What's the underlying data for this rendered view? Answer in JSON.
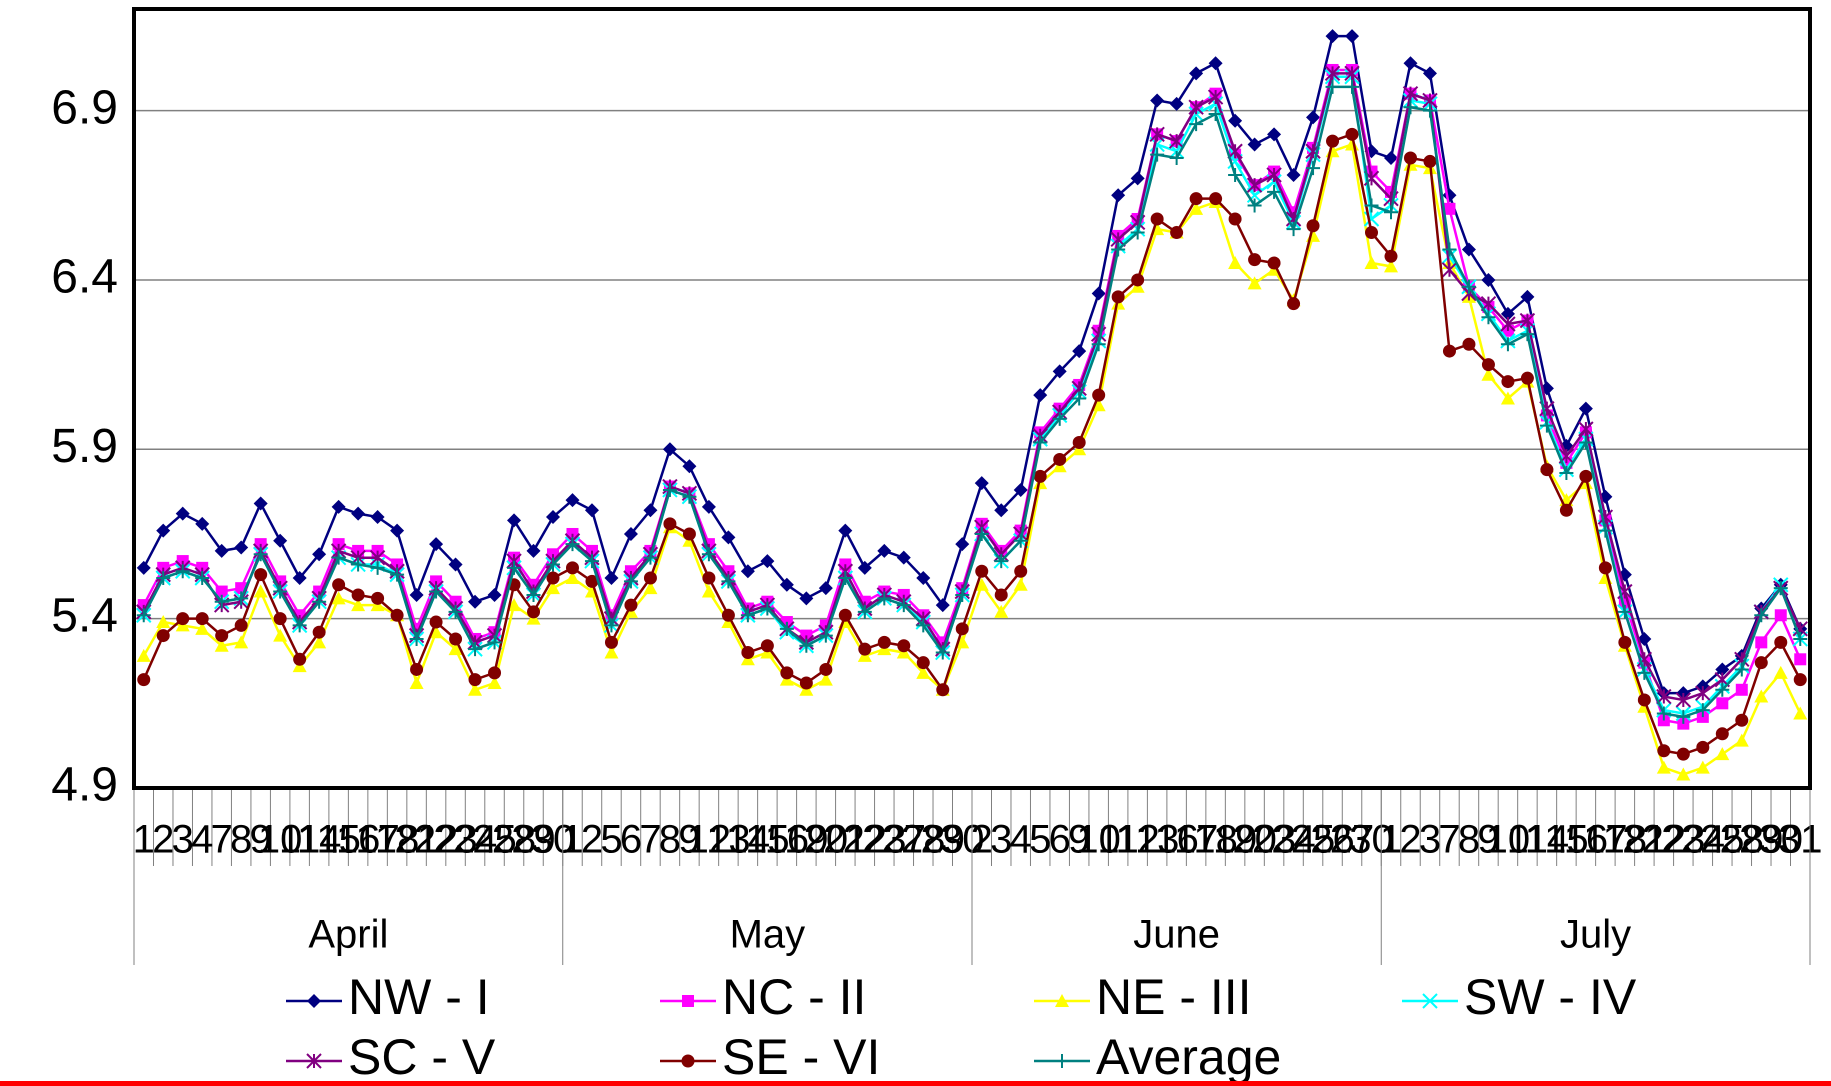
{
  "chart_data": {
    "type": "line",
    "months": [
      {
        "name": "April",
        "days": [
          1,
          2,
          3,
          4,
          7,
          8,
          9,
          10,
          11,
          14,
          15,
          16,
          17,
          18,
          21,
          22,
          23,
          24,
          25,
          28,
          29,
          30
        ]
      },
      {
        "name": "May",
        "days": [
          1,
          2,
          5,
          6,
          7,
          8,
          9,
          12,
          13,
          14,
          15,
          16,
          19,
          20,
          21,
          22,
          23,
          27,
          28,
          29,
          30
        ]
      },
      {
        "name": "June",
        "days": [
          2,
          3,
          4,
          5,
          6,
          9,
          10,
          11,
          12,
          13,
          16,
          17,
          18,
          19,
          20,
          23,
          24,
          25,
          26,
          27,
          30
        ]
      },
      {
        "name": "July",
        "days": [
          1,
          2,
          3,
          7,
          8,
          9,
          10,
          11,
          14,
          15,
          16,
          17,
          18,
          21,
          22,
          23,
          24,
          25,
          28,
          29,
          30,
          31
        ]
      }
    ],
    "ylim": [
      4.9,
      7.2
    ],
    "yticks": [
      4.9,
      5.4,
      5.9,
      6.4,
      6.9
    ],
    "grid": true,
    "legend": "bottom",
    "series": [
      {
        "name": "NW - I",
        "color": "#000080",
        "marker": "diamond",
        "values": [
          5.55,
          5.66,
          5.71,
          5.68,
          5.6,
          5.61,
          5.74,
          5.63,
          5.52,
          5.59,
          5.73,
          5.71,
          5.7,
          5.66,
          5.47,
          5.62,
          5.56,
          5.45,
          5.47,
          5.69,
          5.6,
          5.7,
          5.75,
          5.72,
          5.52,
          5.65,
          5.72,
          5.9,
          5.85,
          5.73,
          5.64,
          5.54,
          5.57,
          5.5,
          5.46,
          5.49,
          5.66,
          5.55,
          5.6,
          5.58,
          5.52,
          5.44,
          5.62,
          5.8,
          5.72,
          5.78,
          6.06,
          6.13,
          6.19,
          6.36,
          6.65,
          6.7,
          6.93,
          6.92,
          7.01,
          7.04,
          6.87,
          6.8,
          6.83,
          6.71,
          6.88,
          7.12,
          7.12,
          6.78,
          6.76,
          7.04,
          7.01,
          6.65,
          6.49,
          6.4,
          6.3,
          6.35,
          6.08,
          5.91,
          6.02,
          5.76,
          5.53,
          5.34,
          5.18,
          5.18,
          5.2,
          5.25,
          5.29,
          5.43,
          5.5,
          5.37
        ]
      },
      {
        "name": "NC - II",
        "color": "#ff00ff",
        "marker": "square",
        "values": [
          5.44,
          5.55,
          5.57,
          5.55,
          5.48,
          5.49,
          5.62,
          5.51,
          5.41,
          5.48,
          5.62,
          5.6,
          5.6,
          5.56,
          5.37,
          5.51,
          5.45,
          5.34,
          5.36,
          5.58,
          5.5,
          5.59,
          5.65,
          5.6,
          5.41,
          5.54,
          5.6,
          5.79,
          5.77,
          5.62,
          5.54,
          5.43,
          5.45,
          5.39,
          5.35,
          5.38,
          5.56,
          5.45,
          5.48,
          5.47,
          5.41,
          5.33,
          5.49,
          5.68,
          5.6,
          5.66,
          5.95,
          6.02,
          6.09,
          6.25,
          6.53,
          6.58,
          6.83,
          6.81,
          6.91,
          6.95,
          6.77,
          6.68,
          6.72,
          6.6,
          6.79,
          7.02,
          7.02,
          6.72,
          6.66,
          6.95,
          6.93,
          6.61,
          6.38,
          6.32,
          6.25,
          6.28,
          6.0,
          5.86,
          5.95,
          5.69,
          5.45,
          5.27,
          5.1,
          5.09,
          5.11,
          5.15,
          5.19,
          5.33,
          5.41,
          5.28
        ]
      },
      {
        "name": "NE - III",
        "color": "#ffff00",
        "marker": "triangle",
        "values": [
          5.29,
          5.39,
          5.38,
          5.37,
          5.32,
          5.33,
          5.48,
          5.35,
          5.26,
          5.33,
          5.46,
          5.44,
          5.44,
          5.41,
          5.21,
          5.36,
          5.31,
          5.19,
          5.21,
          5.44,
          5.4,
          5.49,
          5.52,
          5.48,
          5.3,
          5.42,
          5.49,
          5.67,
          5.63,
          5.48,
          5.39,
          5.28,
          5.3,
          5.22,
          5.19,
          5.22,
          5.39,
          5.29,
          5.31,
          5.3,
          5.24,
          5.19,
          5.33,
          5.5,
          5.42,
          5.5,
          5.8,
          5.85,
          5.9,
          6.03,
          6.33,
          6.38,
          6.55,
          6.54,
          6.61,
          6.63,
          6.45,
          6.39,
          6.43,
          6.34,
          6.53,
          6.78,
          6.8,
          6.45,
          6.44,
          6.74,
          6.73,
          6.45,
          6.35,
          6.12,
          6.05,
          6.1,
          5.85,
          5.75,
          5.8,
          5.52,
          5.32,
          5.14,
          4.96,
          4.94,
          4.96,
          5.0,
          5.04,
          5.17,
          5.24,
          5.12
        ]
      },
      {
        "name": "SW - IV",
        "color": "#00ffff",
        "marker": "x",
        "values": [
          5.41,
          5.52,
          5.54,
          5.52,
          5.45,
          5.46,
          5.59,
          5.48,
          5.38,
          5.45,
          5.58,
          5.56,
          5.56,
          5.53,
          5.34,
          5.48,
          5.42,
          5.31,
          5.33,
          5.55,
          5.47,
          5.56,
          5.62,
          5.57,
          5.38,
          5.51,
          5.58,
          5.78,
          5.76,
          5.59,
          5.51,
          5.41,
          5.43,
          5.36,
          5.32,
          5.35,
          5.52,
          5.42,
          5.46,
          5.44,
          5.39,
          5.3,
          5.47,
          5.65,
          5.57,
          5.63,
          5.93,
          6.0,
          6.07,
          6.22,
          6.5,
          6.55,
          6.8,
          6.78,
          6.89,
          6.92,
          6.75,
          6.65,
          6.69,
          6.57,
          6.77,
          7.0,
          7.0,
          6.58,
          6.62,
          6.93,
          6.92,
          6.47,
          6.38,
          6.3,
          6.22,
          6.25,
          5.98,
          5.84,
          5.93,
          5.67,
          5.42,
          5.25,
          5.13,
          5.12,
          5.14,
          5.2,
          5.26,
          5.42,
          5.5,
          5.34
        ]
      },
      {
        "name": "SC - V",
        "color": "#800080",
        "marker": "star",
        "values": [
          5.42,
          5.53,
          5.55,
          5.53,
          5.44,
          5.45,
          5.6,
          5.49,
          5.39,
          5.46,
          5.6,
          5.58,
          5.58,
          5.54,
          5.35,
          5.49,
          5.43,
          5.33,
          5.35,
          5.57,
          5.48,
          5.57,
          5.63,
          5.58,
          5.4,
          5.52,
          5.59,
          5.79,
          5.77,
          5.6,
          5.52,
          5.42,
          5.44,
          5.37,
          5.33,
          5.36,
          5.54,
          5.43,
          5.47,
          5.45,
          5.4,
          5.31,
          5.48,
          5.67,
          5.59,
          5.65,
          5.94,
          6.01,
          6.08,
          6.24,
          6.52,
          6.57,
          6.83,
          6.81,
          6.91,
          6.94,
          6.78,
          6.68,
          6.71,
          6.58,
          6.78,
          7.01,
          7.01,
          6.7,
          6.64,
          6.95,
          6.93,
          6.43,
          6.36,
          6.33,
          6.27,
          6.28,
          6.02,
          5.88,
          5.96,
          5.7,
          5.48,
          5.28,
          5.17,
          5.16,
          5.18,
          5.22,
          5.28,
          5.42,
          5.49,
          5.37
        ]
      },
      {
        "name": "SE - VI",
        "color": "#800000",
        "marker": "circle",
        "values": [
          5.22,
          5.35,
          5.4,
          5.4,
          5.35,
          5.38,
          5.53,
          5.4,
          5.28,
          5.36,
          5.5,
          5.47,
          5.46,
          5.41,
          5.25,
          5.39,
          5.34,
          5.22,
          5.24,
          5.5,
          5.42,
          5.52,
          5.55,
          5.51,
          5.33,
          5.44,
          5.52,
          5.68,
          5.65,
          5.52,
          5.41,
          5.3,
          5.32,
          5.24,
          5.21,
          5.25,
          5.41,
          5.31,
          5.33,
          5.32,
          5.27,
          5.19,
          5.37,
          5.54,
          5.47,
          5.54,
          5.82,
          5.87,
          5.92,
          6.06,
          6.35,
          6.4,
          6.58,
          6.54,
          6.64,
          6.64,
          6.58,
          6.46,
          6.45,
          6.33,
          6.56,
          6.81,
          6.83,
          6.54,
          6.47,
          6.76,
          6.75,
          6.19,
          6.21,
          6.15,
          6.1,
          6.11,
          5.84,
          5.72,
          5.82,
          5.55,
          5.33,
          5.16,
          5.01,
          5.0,
          5.02,
          5.06,
          5.1,
          5.27,
          5.33,
          5.22
        ]
      },
      {
        "name": "Average",
        "color": "#008080",
        "marker": "plus",
        "values": [
          5.41,
          5.52,
          5.54,
          5.52,
          5.45,
          5.46,
          5.59,
          5.48,
          5.38,
          5.45,
          5.58,
          5.56,
          5.55,
          5.53,
          5.34,
          5.48,
          5.42,
          5.31,
          5.33,
          5.55,
          5.47,
          5.56,
          5.62,
          5.57,
          5.38,
          5.51,
          5.58,
          5.78,
          5.76,
          5.59,
          5.51,
          5.41,
          5.43,
          5.37,
          5.32,
          5.35,
          5.52,
          5.42,
          5.46,
          5.44,
          5.38,
          5.3,
          5.47,
          5.65,
          5.57,
          5.63,
          5.92,
          5.99,
          6.05,
          6.21,
          6.49,
          6.54,
          6.77,
          6.76,
          6.86,
          6.89,
          6.71,
          6.62,
          6.66,
          6.55,
          6.73,
          6.97,
          6.97,
          6.62,
          6.6,
          6.91,
          6.9,
          6.49,
          6.38,
          6.29,
          6.21,
          6.24,
          5.97,
          5.83,
          5.92,
          5.66,
          5.42,
          5.24,
          5.12,
          5.11,
          5.13,
          5.19,
          5.25,
          5.41,
          5.49,
          5.34
        ]
      }
    ]
  }
}
